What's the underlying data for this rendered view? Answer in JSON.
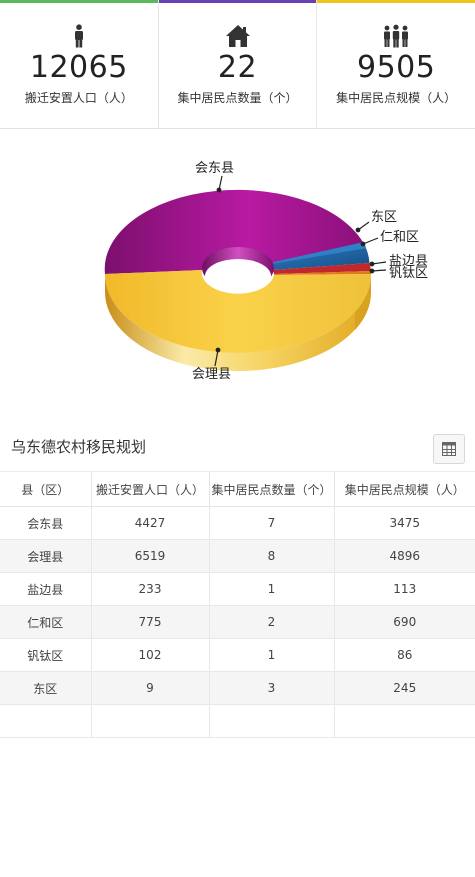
{
  "stats": [
    {
      "value": "12065",
      "label": "搬迁安置人口（人）",
      "icon": "person-icon",
      "accent": "#5cb85c"
    },
    {
      "value": "22",
      "label": "集中居民点数量（个）",
      "icon": "home-icon",
      "accent": "#6a3fb5"
    },
    {
      "value": "9505",
      "label": "集中居民点规模（人）",
      "icon": "group-icon",
      "accent": "#f0c419"
    }
  ],
  "section_title": "乌东德农村移民规划",
  "table": {
    "headers": [
      "县（区）",
      "搬迁安置人口（人）",
      "集中居民点数量（个）",
      "集中居民点规模（人）"
    ],
    "rows": [
      [
        "会东县",
        "4427",
        "7",
        "3475"
      ],
      [
        "会理县",
        "6519",
        "8",
        "4896"
      ],
      [
        "盐边县",
        "233",
        "1",
        "113"
      ],
      [
        "仁和区",
        "775",
        "2",
        "690"
      ],
      [
        "钒钛区",
        "102",
        "1",
        "86"
      ],
      [
        "东区",
        "9",
        "3",
        "245"
      ]
    ]
  },
  "chart_data": {
    "type": "pie",
    "style": "3d-donut",
    "slices": [
      {
        "label": "会东县",
        "value": 4427,
        "color": "#a0148e"
      },
      {
        "label": "东区",
        "value": 9,
        "color": "#1b5f9e"
      },
      {
        "label": "仁和区",
        "value": 775,
        "color": "#1b5f9e"
      },
      {
        "label": "盐边县",
        "value": 233,
        "color": "#c0282c"
      },
      {
        "label": "钒钛区",
        "value": 102,
        "color": "#e07a1a"
      },
      {
        "label": "会理县",
        "value": 6519,
        "color": "#f3c42d"
      }
    ]
  }
}
